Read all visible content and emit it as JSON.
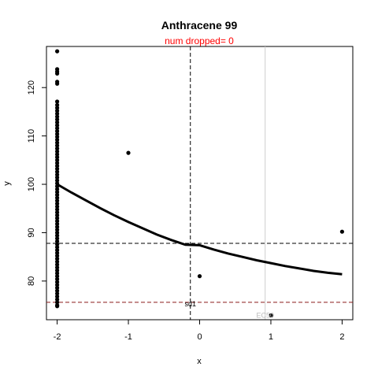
{
  "chart_data": {
    "type": "scatter",
    "title": "Anthracene 99",
    "subtitle": "num dropped= 0",
    "xlabel": "x",
    "ylabel": "y",
    "xlim": [
      -2.15,
      2.15
    ],
    "ylim": [
      72,
      128.5
    ],
    "x_ticks": [
      -2,
      -1,
      0,
      1,
      2
    ],
    "x_tick_labels": [
      "-2",
      "-1",
      "0",
      "1",
      "2"
    ],
    "y_ticks": [
      80,
      90,
      100,
      110,
      120
    ],
    "y_tick_labels": [
      "80",
      "90",
      "100",
      "110",
      "120"
    ],
    "grid": false,
    "legend": "none",
    "points": {
      "name": "observations",
      "x": [
        -2,
        -2,
        -2,
        -2,
        -2,
        -2,
        -2,
        -2,
        -2,
        -2,
        -2,
        -2,
        -2,
        -2,
        -2,
        -2,
        -2,
        -2,
        -2,
        -2,
        -2,
        -2,
        -2,
        -2,
        -2,
        -2,
        -2,
        -2,
        -2,
        -2,
        -2,
        -2,
        -2,
        -2,
        -2,
        -2,
        -2,
        -2,
        -2,
        -2,
        -2,
        -2,
        -2,
        -2,
        -2,
        -2,
        -2,
        -2,
        -2,
        -2,
        -2,
        -2,
        -2,
        -2,
        -2,
        -2,
        -2,
        -2,
        -2,
        -2,
        -2,
        -2,
        -2,
        -2,
        -2,
        -2,
        -2,
        -2,
        -2,
        -2,
        -2,
        -2,
        -2,
        -2,
        -2,
        -2,
        -2,
        -2,
        -1,
        0,
        1,
        2
      ],
      "y": [
        127.5,
        123.8,
        123.3,
        122.9,
        121.2,
        120.8,
        117.1,
        116.4,
        115.8,
        115.2,
        114.6,
        114.0,
        113.4,
        112.8,
        112.2,
        111.6,
        111.0,
        110.4,
        109.8,
        109.2,
        108.6,
        108.0,
        107.4,
        106.8,
        106.2,
        105.6,
        105.0,
        104.4,
        103.8,
        103.2,
        102.6,
        102.0,
        101.4,
        100.8,
        100.2,
        99.6,
        99.0,
        98.4,
        97.8,
        97.2,
        96.6,
        96.0,
        95.4,
        94.8,
        94.2,
        93.6,
        93.0,
        92.4,
        91.8,
        91.2,
        90.6,
        90.0,
        89.4,
        88.8,
        88.2,
        87.6,
        87.0,
        86.4,
        85.8,
        85.2,
        84.6,
        84.0,
        83.4,
        82.8,
        82.2,
        81.6,
        81.0,
        80.4,
        79.8,
        79.2,
        78.6,
        78.0,
        77.4,
        76.8,
        76.2,
        75.6,
        75.0,
        74.8,
        106.5,
        81.0,
        72.9,
        90.2
      ],
      "color": "#000000"
    },
    "curve": {
      "name": "fit",
      "x": [
        -2,
        -1.8,
        -1.6,
        -1.4,
        -1.2,
        -1,
        -0.8,
        -0.6,
        -0.4,
        -0.2,
        0,
        0.2,
        0.4,
        0.6,
        0.8,
        1,
        1.2,
        1.4,
        1.6,
        1.8,
        2
      ],
      "y": [
        100,
        98.3,
        96.7,
        95.1,
        93.6,
        92.2,
        90.9,
        89.6,
        88.5,
        87.5,
        87.4,
        86.5,
        85.7,
        85.0,
        84.3,
        83.7,
        83.1,
        82.6,
        82.1,
        81.7,
        81.4
      ],
      "color": "#000000"
    },
    "reference_lines": [
      {
        "orientation": "vertical",
        "value": -0.13,
        "style": "dashed",
        "color": "#000000"
      },
      {
        "orientation": "horizontal",
        "value": 87.8,
        "style": "dashed",
        "color": "#000000"
      },
      {
        "orientation": "horizontal",
        "value": 75.6,
        "style": "dashed",
        "color": "#8b1a1a"
      },
      {
        "orientation": "vertical",
        "value": 0.92,
        "style": "solid",
        "color": "#cccccc"
      }
    ],
    "annotations": [
      {
        "text": "sd1",
        "x": -0.13,
        "y": 74.8,
        "color": "#000000"
      },
      {
        "text": "EC50",
        "x": 0.92,
        "y": 72.4,
        "color": "#bbbbbb"
      }
    ],
    "colors": {
      "subtitle": "#ff0000",
      "sd_line": "#8b1a1a",
      "ec50_line": "#cccccc"
    }
  }
}
